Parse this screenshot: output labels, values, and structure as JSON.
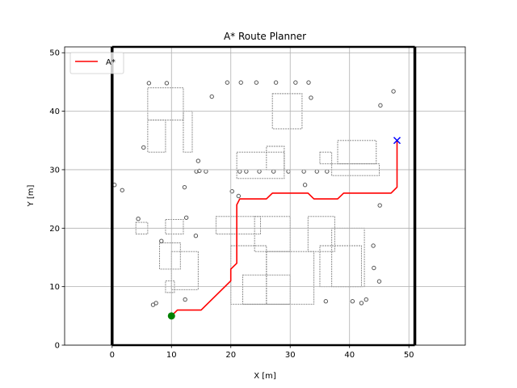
{
  "chart_data": {
    "type": "line",
    "title": "A* Route Planner",
    "xlabel": "X [m]",
    "ylabel": "Y [m]",
    "xlim": [
      -8,
      59.5
    ],
    "ylim": [
      0,
      51
    ],
    "xticks": [
      0,
      10,
      20,
      30,
      40,
      50
    ],
    "yticks": [
      0,
      10,
      20,
      30,
      40,
      50
    ],
    "grid": true,
    "legend_position": "top-left",
    "colors": {
      "path": "#ff0000",
      "start": "#008000",
      "goal": "#0000ff",
      "map": "#808080",
      "boundary": "#000000"
    },
    "series": [
      {
        "name": "A*",
        "x": [
          10,
          10.5,
          11,
          15,
          20,
          20,
          21,
          21,
          21.5,
          22,
          26,
          27,
          33,
          34,
          38,
          39,
          47,
          48,
          48
        ],
        "y": [
          5,
          5.5,
          6,
          6,
          11,
          13,
          14,
          24,
          25,
          25,
          25,
          26,
          26,
          25,
          25,
          26,
          26,
          27,
          35
        ]
      }
    ],
    "start": {
      "x": 10,
      "y": 5
    },
    "goal": {
      "x": 48,
      "y": 35
    },
    "boundary": {
      "xmin": 0,
      "xmax": 51,
      "ymin": 0,
      "ymax": 51
    },
    "obstacles": {
      "rects": [
        [
          6,
          38.5,
          12,
          44
        ],
        [
          6,
          33,
          9,
          38.5
        ],
        [
          12,
          33,
          13.5,
          40
        ],
        [
          21,
          28.5,
          29,
          33
        ],
        [
          26,
          30,
          29,
          34
        ],
        [
          27,
          37,
          32,
          43
        ],
        [
          35,
          31,
          37,
          33
        ],
        [
          38,
          31,
          44.5,
          35
        ],
        [
          37,
          29,
          45,
          31
        ],
        [
          17.5,
          19,
          25,
          22
        ],
        [
          24,
          16,
          30,
          22
        ],
        [
          20,
          7,
          26,
          17
        ],
        [
          22,
          7,
          30,
          12
        ],
        [
          26,
          7,
          34,
          16
        ],
        [
          33,
          16,
          37.5,
          22
        ],
        [
          35,
          10,
          42,
          17
        ],
        [
          37,
          10,
          42.5,
          20
        ],
        [
          9,
          19,
          12,
          21.5
        ],
        [
          8,
          13,
          11.5,
          17.5
        ],
        [
          10,
          9.5,
          14.5,
          16
        ],
        [
          9,
          9,
          10.5,
          11
        ],
        [
          4,
          19,
          6,
          21
        ]
      ],
      "dots": [
        [
          6.2,
          44.8
        ],
        [
          9.2,
          44.8
        ],
        [
          5.3,
          33.8
        ],
        [
          19.4,
          44.9
        ],
        [
          21.7,
          44.9
        ],
        [
          24.3,
          44.9
        ],
        [
          27.6,
          44.9
        ],
        [
          30.9,
          44.9
        ],
        [
          33.1,
          44.9
        ],
        [
          16.8,
          42.5
        ],
        [
          33.5,
          42.3
        ],
        [
          21.5,
          29.7
        ],
        [
          22.6,
          29.7
        ],
        [
          24.8,
          29.7
        ],
        [
          27.2,
          29.7
        ],
        [
          29.7,
          29.7
        ],
        [
          32.3,
          29.7
        ],
        [
          34.5,
          29.7
        ],
        [
          36.2,
          29.7
        ],
        [
          14.2,
          29.7
        ],
        [
          14.5,
          31.5
        ],
        [
          14.7,
          29.8
        ],
        [
          45.2,
          41.0
        ],
        [
          47.4,
          43.4
        ],
        [
          6.9,
          6.9
        ],
        [
          7.4,
          7.2
        ],
        [
          40.5,
          7.5
        ],
        [
          42.0,
          7.2
        ],
        [
          42.8,
          7.8
        ],
        [
          36.0,
          7.5
        ],
        [
          15.8,
          29.7
        ],
        [
          12.2,
          27.0
        ],
        [
          20.2,
          26.3
        ],
        [
          21.3,
          25.5
        ],
        [
          45.1,
          23.9
        ],
        [
          32.5,
          27.4
        ],
        [
          12.5,
          21.8
        ],
        [
          8.3,
          17.8
        ],
        [
          4.4,
          21.6
        ],
        [
          14.1,
          18.7
        ],
        [
          12.3,
          7.8
        ],
        [
          0.4,
          27.4
        ],
        [
          44.0,
          17.0
        ],
        [
          44.1,
          13.2
        ],
        [
          45.0,
          10.9
        ],
        [
          1.7,
          26.5
        ]
      ]
    }
  }
}
